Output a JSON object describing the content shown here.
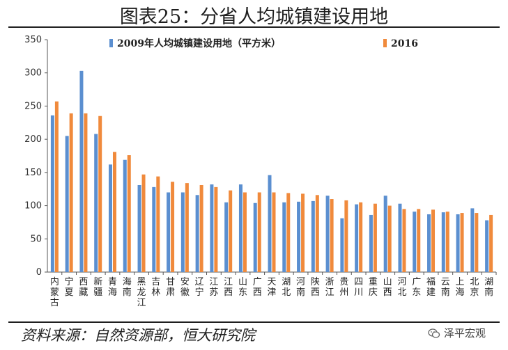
{
  "header": {
    "title": "图表25：分省人均城镇建设用地"
  },
  "footer": {
    "source": "资料来源：自然资源部，恒大研究院",
    "watermark": "泽平宏观"
  },
  "colors": {
    "series_2009": "#5b8fd0",
    "series_2016": "#f08a3c",
    "axis": "#555555"
  },
  "chart_data": {
    "type": "bar",
    "title": "",
    "ylim": [
      0,
      350
    ],
    "yticks": [
      0,
      50,
      100,
      150,
      200,
      250,
      300,
      350
    ],
    "grid": false,
    "legend_position": "top",
    "categories": [
      "内蒙古",
      "宁夏",
      "西藏",
      "新疆",
      "青海",
      "海南",
      "黑龙江",
      "吉林",
      "甘肃",
      "安徽",
      "辽宁",
      "江苏",
      "江西",
      "山东",
      "广西",
      "天津",
      "湖北",
      "河南",
      "陕西",
      "浙江",
      "贵州",
      "四川",
      "重庆",
      "山西",
      "河北",
      "广东",
      "福建",
      "云南",
      "上海",
      "北京",
      "湖南"
    ],
    "series": [
      {
        "name": "2009年人均城镇建设用地（平方米）",
        "values": [
          236,
          205,
          303,
          208,
          162,
          169,
          131,
          128,
          120,
          120,
          116,
          132,
          105,
          132,
          104,
          146,
          105,
          106,
          107,
          115,
          81,
          102,
          86,
          115,
          103,
          91,
          87,
          90,
          87,
          96,
          78
        ]
      },
      {
        "name": "2016",
        "values": [
          257,
          239,
          239,
          235,
          181,
          176,
          147,
          144,
          136,
          134,
          131,
          128,
          123,
          120,
          120,
          120,
          119,
          118,
          116,
          110,
          108,
          105,
          103,
          100,
          95,
          95,
          94,
          91,
          89,
          89,
          86
        ]
      }
    ]
  }
}
